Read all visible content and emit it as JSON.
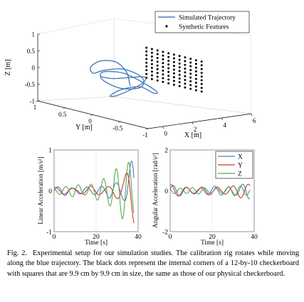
{
  "figure": {
    "caption_label": "Fig. 2.",
    "caption_text": "Experimental setup for our simulation studies. The calibration rig rotates while moving along the blue trajectory. The black dots represent the internal corners of a 12-by-10 checkerboard with squares that are 9.9 cm by 9.9 cm in size, the same as those of our physical checkerboard."
  },
  "chart_data": [
    {
      "type": "scatter",
      "view": "3d",
      "title": "",
      "xlabel": "X [m]",
      "ylabel": "Y [m]",
      "zlabel": "Z [m]",
      "xlim": [
        -1,
        6
      ],
      "ylim": [
        -1,
        1
      ],
      "zlim": [
        -1,
        1
      ],
      "x_ticks": [
        "0",
        "2",
        "4",
        "6"
      ],
      "y_ticks": [
        "1",
        "0.5",
        "0",
        "-0.5",
        "-1"
      ],
      "z_ticks": [
        "1",
        "0.5",
        "0",
        "-0.5",
        "-1"
      ],
      "legend": [
        "Simulated Trajectory",
        "Synthetic Features"
      ],
      "legend_position": "top-right",
      "series": [
        {
          "name": "Simulated Trajectory",
          "color": "#4a7ebb",
          "kind": "line",
          "points": [
            [
              0.4,
              -0.3,
              -0.1
            ],
            [
              0.9,
              -0.1,
              0.2
            ],
            [
              1.3,
              0.2,
              0.35
            ],
            [
              1.4,
              0.5,
              0.25
            ],
            [
              1.1,
              0.6,
              0.05
            ],
            [
              0.7,
              0.45,
              -0.05
            ],
            [
              0.5,
              0.2,
              0.15
            ],
            [
              0.7,
              -0.1,
              0.3
            ],
            [
              1.2,
              -0.3,
              0.1
            ],
            [
              1.5,
              -0.2,
              -0.25
            ],
            [
              1.3,
              0.1,
              -0.4
            ],
            [
              0.8,
              0.3,
              -0.2
            ],
            [
              0.4,
              0.2,
              0.1
            ],
            [
              0.3,
              -0.2,
              0.25
            ],
            [
              0.6,
              -0.5,
              0.05
            ],
            [
              1.1,
              -0.6,
              -0.2
            ],
            [
              1.6,
              -0.4,
              -0.35
            ],
            [
              1.8,
              -0.1,
              -0.3
            ],
            [
              1.7,
              0.2,
              -0.5
            ],
            [
              1.3,
              0.3,
              -0.7
            ],
            [
              0.9,
              0.1,
              -0.6
            ],
            [
              0.7,
              -0.2,
              -0.3
            ],
            [
              0.9,
              -0.4,
              0.0
            ],
            [
              1.4,
              -0.3,
              0.1
            ],
            [
              1.7,
              0.0,
              -0.05
            ],
            [
              1.5,
              0.3,
              -0.2
            ],
            [
              1.0,
              0.4,
              -0.15
            ]
          ]
        },
        {
          "name": "Synthetic Features",
          "color": "#000000",
          "kind": "grid-points",
          "grid_columns": 11,
          "grid_rows": 9,
          "x_value": 4.5,
          "y_range": [
            -0.5,
            0.5
          ],
          "z_range": [
            -0.45,
            0.45
          ]
        }
      ]
    },
    {
      "type": "line",
      "title": "",
      "xlabel": "Time [s]",
      "ylabel": "Linear Acceleration [m/s²]",
      "xlim": [
        0,
        40
      ],
      "ylim": [
        -1,
        1
      ],
      "x_ticks": [
        0,
        20,
        40
      ],
      "y_ticks": [
        1,
        0,
        -1
      ],
      "series": [
        {
          "name": "X",
          "color": "#4a7ebb",
          "amplitudes": [
            0.1,
            0.12,
            0.08,
            0.15,
            0.1,
            0.12,
            0.35,
            0.3,
            0.9
          ],
          "freq": 0.9,
          "phase": 0.0
        },
        {
          "name": "Y",
          "color": "#cc3b2a",
          "amplitudes": [
            0.08,
            0.1,
            0.1,
            0.1,
            0.12,
            0.1,
            0.25,
            0.3,
            0.9
          ],
          "freq": 0.75,
          "phase": 1.1
        },
        {
          "name": "Z",
          "color": "#5aaa4e",
          "amplitudes": [
            0.05,
            0.15,
            0.25,
            0.1,
            0.2,
            0.5,
            0.6,
            0.7,
            0.85
          ],
          "freq": 1.05,
          "phase": 2.0
        }
      ]
    },
    {
      "type": "line",
      "title": "",
      "xlabel": "Time [s]",
      "ylabel": "Angular Acceleration [rad/s²]",
      "xlim": [
        0,
        40
      ],
      "ylim": [
        -2,
        2
      ],
      "x_ticks": [
        0,
        20,
        40
      ],
      "y_ticks": [
        2,
        0,
        -2
      ],
      "legend": [
        "X",
        "Y",
        "Z"
      ],
      "legend_position": "top-right",
      "series": [
        {
          "name": "X",
          "color": "#4a7ebb",
          "amplitudes": [
            0.3,
            0.25,
            0.2,
            0.2,
            0.2,
            0.25,
            0.3,
            0.35,
            0.4
          ],
          "freq": 0.95,
          "phase": 0.3
        },
        {
          "name": "Y",
          "color": "#cc3b2a",
          "amplitudes": [
            0.3,
            0.3,
            0.25,
            0.2,
            0.2,
            0.25,
            0.3,
            0.35,
            0.35
          ],
          "freq": 0.85,
          "phase": 1.3
        },
        {
          "name": "Z",
          "color": "#5aaa4e",
          "amplitudes": [
            0.15,
            0.2,
            0.2,
            0.15,
            0.15,
            0.2,
            0.25,
            0.25,
            0.3
          ],
          "freq": 1.1,
          "phase": 2.4
        }
      ]
    }
  ]
}
